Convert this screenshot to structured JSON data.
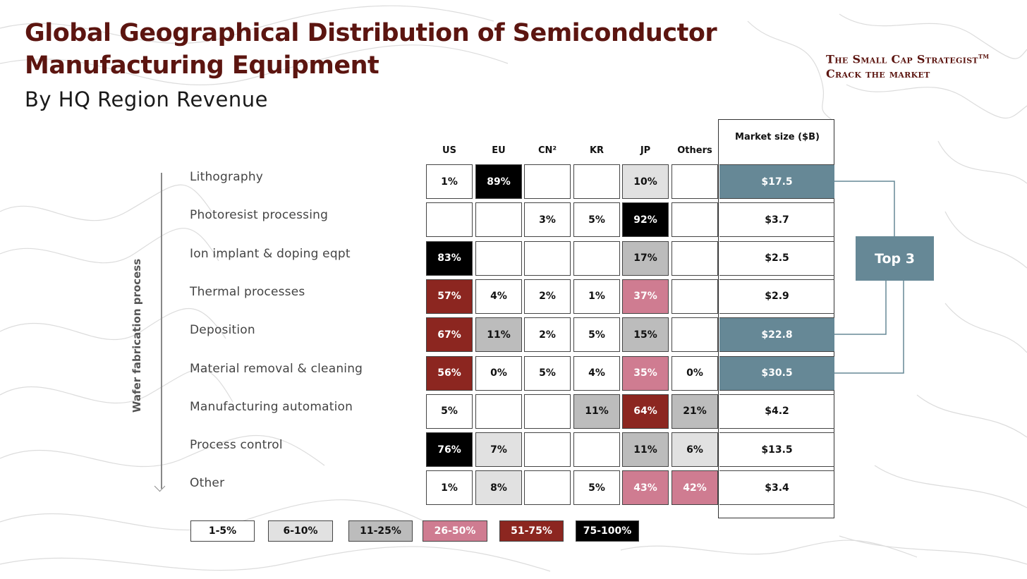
{
  "title": "Global Geographical Distribution of Semiconductor Manufacturing Equipment",
  "subtitle": "By HQ Region Revenue",
  "brand": {
    "line1": "The Small Cap Strategist",
    "tm": "TM",
    "line2": "Crack the market"
  },
  "colors": {
    "c1": "#ffffff",
    "c2": "#e1e1e1",
    "c3": "#bcbcbc",
    "c4": "#cf7c91",
    "c5": "#8c2620",
    "c6": "#000000",
    "highlight": "#668896",
    "title": "#5c1510"
  },
  "chart_data": {
    "type": "table",
    "title": "Global Geographical Distribution of Semiconductor Manufacturing Equipment",
    "subtitle": "By HQ Region Revenue",
    "axis_label": "Wafer fabrication process",
    "columns": [
      "US",
      "EU",
      "CN²",
      "KR",
      "JP",
      "Others"
    ],
    "market_header": "Market size ($B)",
    "rows": [
      {
        "label": "Lithography",
        "values": [
          "1%",
          "89%",
          "",
          "",
          "10%",
          ""
        ],
        "market": "$17.5",
        "top3": true
      },
      {
        "label": "Photoresist processing",
        "values": [
          "",
          "",
          "3%",
          "5%",
          "92%",
          ""
        ],
        "market": "$3.7",
        "top3": false
      },
      {
        "label": "Ion implant & doping eqpt",
        "values": [
          "83%",
          "",
          "",
          "",
          "17%",
          ""
        ],
        "market": "$2.5",
        "top3": false
      },
      {
        "label": "Thermal processes",
        "values": [
          "57%",
          "4%",
          "2%",
          "1%",
          "37%",
          ""
        ],
        "market": "$2.9",
        "top3": false
      },
      {
        "label": "Deposition",
        "values": [
          "67%",
          "11%",
          "2%",
          "5%",
          "15%",
          ""
        ],
        "market": "$22.8",
        "top3": true
      },
      {
        "label": "Material removal & cleaning",
        "values": [
          "56%",
          "0%",
          "5%",
          "4%",
          "35%",
          "0%"
        ],
        "market": "$30.5",
        "top3": true
      },
      {
        "label": "Manufacturing automation",
        "values": [
          "5%",
          "",
          "",
          "11%",
          "64%",
          "21%"
        ],
        "market": "$4.2",
        "top3": false
      },
      {
        "label": "Process control",
        "values": [
          "76%",
          "7%",
          "",
          "",
          "11%",
          "6%"
        ],
        "market": "$13.5",
        "top3": false
      },
      {
        "label": "Other",
        "values": [
          "1%",
          "8%",
          "",
          "5%",
          "43%",
          "42%"
        ],
        "market": "$3.4",
        "top3": false
      }
    ],
    "top3_label": "Top 3",
    "legend": [
      "1-5%",
      "6-10%",
      "11-25%",
      "26-50%",
      "51-75%",
      "75-100%"
    ]
  }
}
